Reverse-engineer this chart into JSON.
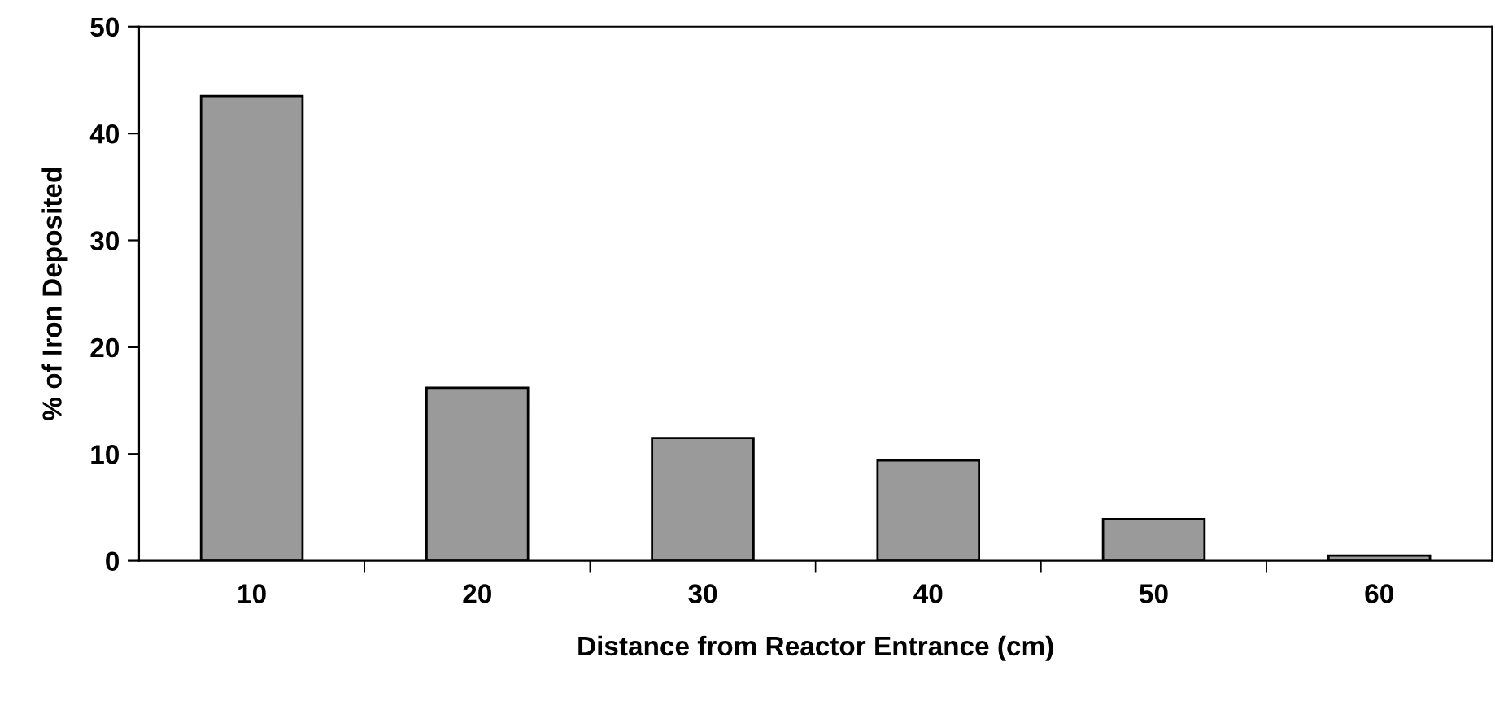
{
  "chart_data": {
    "type": "bar",
    "xlabel": "Distance from Reactor Entrance (cm)",
    "ylabel": "% of Iron Deposited",
    "categories": [
      "10",
      "20",
      "30",
      "40",
      "50",
      "60"
    ],
    "values": [
      43.5,
      16.2,
      11.5,
      9.4,
      3.9,
      0.5
    ],
    "color": "#9a9a9a",
    "ylim": [
      0,
      50
    ],
    "yticks": [
      0,
      10,
      20,
      30,
      40,
      50
    ],
    "grid": false,
    "legend": false
  }
}
